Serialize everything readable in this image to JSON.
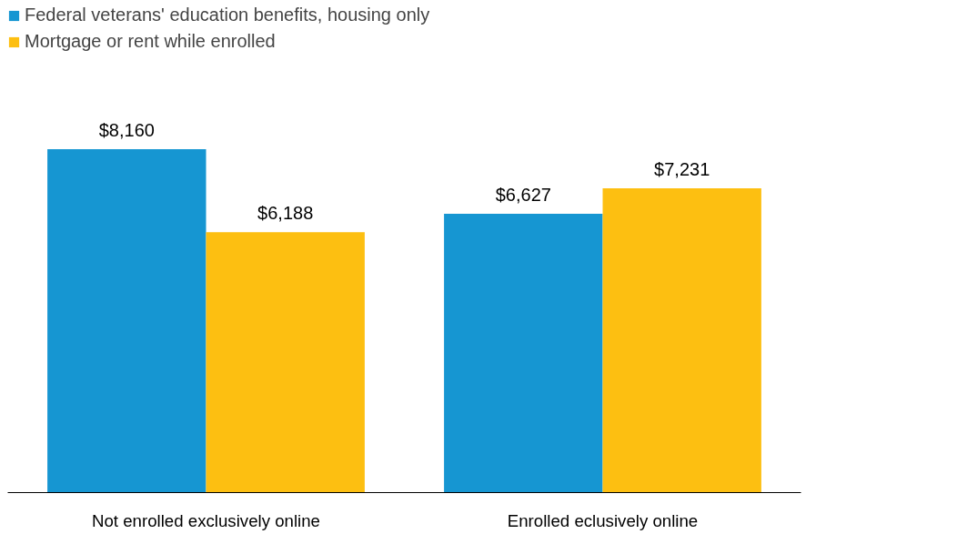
{
  "chart_data": {
    "type": "bar",
    "categories": [
      "Not enrolled exclusively online",
      "Enrolled eclusively online"
    ],
    "series": [
      {
        "name": "Federal veterans' education benefits, housing only",
        "color": "#1696d2",
        "values": [
          8160,
          6627
        ],
        "value_labels": [
          "$8,160",
          "$6,627"
        ]
      },
      {
        "name": "Mortgage or rent while enrolled",
        "color": "#fdbf11",
        "values": [
          6188,
          7231
        ],
        "value_labels": [
          "$6,188",
          "$7,231"
        ]
      }
    ],
    "legend": "top left",
    "tick_labels": "x"
  }
}
